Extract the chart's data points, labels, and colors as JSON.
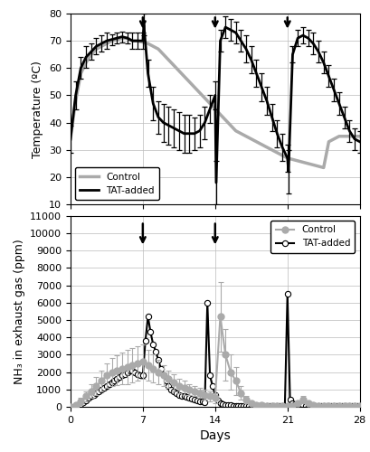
{
  "temp_days_control": [
    0,
    0.5,
    1,
    1.5,
    2,
    2.5,
    3,
    3.5,
    4,
    4.5,
    5,
    5.5,
    6,
    6.5,
    7,
    7.5,
    8,
    8.5,
    9,
    9.5,
    10,
    10.5,
    11,
    11.5,
    12,
    12.5,
    13,
    13.5,
    14,
    14.5,
    15,
    15.5,
    16,
    16.5,
    17,
    17.5,
    18,
    18.5,
    19,
    19.5,
    20,
    20.5,
    21,
    21.5,
    22,
    22.5,
    23,
    23.5,
    24,
    24.5,
    25,
    25.5,
    26,
    26.5,
    27,
    27.5,
    28
  ],
  "temp_control": [
    34,
    48,
    58,
    62,
    65,
    67,
    68,
    69,
    70,
    70.5,
    71,
    71,
    70,
    70,
    69.5,
    69,
    68,
    67,
    65,
    63,
    61,
    59,
    57,
    55,
    53,
    51,
    49,
    47,
    45,
    43,
    41,
    39,
    37,
    36,
    35,
    34,
    33,
    32,
    31,
    30,
    29,
    28,
    27,
    26.5,
    26,
    25.5,
    25,
    24.5,
    24,
    23.5,
    33,
    34,
    35,
    35,
    35,
    35,
    35
  ],
  "temp_days_tat": [
    0,
    0.5,
    1,
    1.5,
    2,
    2.5,
    3,
    3.5,
    4,
    4.5,
    5,
    5.5,
    6,
    6.5,
    7,
    7.1,
    7.5,
    8,
    8.5,
    9,
    9.5,
    10,
    10.5,
    11,
    11.5,
    12,
    12.5,
    13,
    13.5,
    14,
    14.1,
    14.5,
    15,
    15.5,
    16,
    16.5,
    17,
    17.5,
    18,
    18.5,
    19,
    19.5,
    20,
    20.5,
    21,
    21.1,
    21.5,
    22,
    22.5,
    23,
    23.5,
    24,
    24.5,
    25,
    25.5,
    26,
    26.5,
    27,
    27.5,
    28
  ],
  "temp_tat": [
    34,
    50,
    60,
    64,
    66,
    68,
    69,
    70,
    70.5,
    71,
    71.5,
    71,
    70,
    70,
    70,
    76,
    58,
    47,
    42,
    40,
    39,
    38,
    37,
    36,
    36,
    36,
    37,
    40,
    45,
    50,
    18,
    70,
    75,
    74,
    73,
    70,
    67,
    63,
    58,
    53,
    48,
    42,
    36,
    31,
    27,
    22,
    65,
    71,
    72,
    71,
    69,
    66,
    62,
    57,
    52,
    47,
    42,
    37,
    34,
    33
  ],
  "temp_tat_err": [
    5,
    5,
    4,
    4,
    3,
    3,
    3,
    3,
    2,
    2,
    2,
    2,
    3,
    3,
    3,
    4,
    5,
    6,
    6,
    7,
    7,
    7,
    7,
    7,
    7,
    6,
    6,
    6,
    5,
    5,
    8,
    4,
    4,
    4,
    4,
    4,
    5,
    5,
    5,
    5,
    5,
    5,
    5,
    5,
    5,
    8,
    3,
    3,
    3,
    3,
    4,
    4,
    4,
    4,
    4,
    4,
    4,
    4,
    4,
    4
  ],
  "arrow_days_temp": [
    7,
    14,
    21
  ],
  "nh3_days_control": [
    0,
    0.5,
    1,
    1.5,
    2,
    2.5,
    3,
    3.5,
    4,
    4.5,
    5,
    5.5,
    6,
    6.5,
    7,
    7.5,
    8,
    8.5,
    9,
    9.5,
    10,
    10.5,
    11,
    11.5,
    12,
    12.5,
    13,
    13.5,
    14,
    14.5,
    15,
    15.5,
    16,
    16.5,
    17,
    17.5,
    18,
    18.5,
    19,
    19.5,
    20,
    20.5,
    21,
    21.5,
    22,
    22.5,
    23,
    23.5,
    24,
    24.5,
    25,
    25.5,
    26,
    26.5,
    27,
    27.5,
    28
  ],
  "nh3_control": [
    0,
    100,
    300,
    600,
    900,
    1200,
    1500,
    1800,
    2000,
    2100,
    2200,
    2300,
    2400,
    2500,
    2600,
    2400,
    2200,
    2000,
    1800,
    1600,
    1400,
    1200,
    1100,
    1000,
    900,
    800,
    700,
    600,
    500,
    5200,
    3000,
    2000,
    1500,
    800,
    400,
    200,
    100,
    100,
    50,
    50,
    50,
    50,
    50,
    50,
    200,
    400,
    200,
    100,
    50,
    50,
    50,
    50,
    50,
    50,
    50,
    50,
    50
  ],
  "nh3_control_err": [
    0,
    100,
    200,
    300,
    400,
    500,
    600,
    700,
    800,
    850,
    900,
    1000,
    1000,
    1000,
    1000,
    900,
    800,
    700,
    600,
    500,
    500,
    400,
    400,
    300,
    300,
    300,
    300,
    300,
    300,
    2000,
    1500,
    1000,
    800,
    400,
    200,
    100,
    100,
    50,
    50,
    50,
    50,
    50,
    50,
    50,
    100,
    200,
    100,
    50,
    50,
    50,
    50,
    50,
    50,
    50,
    50,
    50,
    50
  ],
  "nh3_days_tat": [
    0,
    0.25,
    0.5,
    0.75,
    1,
    1.25,
    1.5,
    1.75,
    2,
    2.25,
    2.5,
    2.75,
    3,
    3.25,
    3.5,
    3.75,
    4,
    4.25,
    4.5,
    4.75,
    5,
    5.25,
    5.5,
    5.75,
    6,
    6.25,
    6.5,
    6.75,
    7,
    7.25,
    7.5,
    7.75,
    8,
    8.25,
    8.5,
    8.75,
    9,
    9.25,
    9.5,
    9.75,
    10,
    10.25,
    10.5,
    10.75,
    11,
    11.25,
    11.5,
    11.75,
    12,
    12.25,
    12.5,
    12.75,
    13,
    13.25,
    13.5,
    13.75,
    14,
    14.25,
    14.5,
    14.75,
    15,
    15.25,
    15.5,
    15.75,
    16,
    16.25,
    16.5,
    16.75,
    17,
    17.25,
    17.5,
    17.75,
    18,
    18.25,
    18.5,
    18.75,
    19,
    19.25,
    19.5,
    19.75,
    20,
    20.25,
    20.5,
    20.75,
    21,
    21.25,
    21.5,
    21.75,
    22,
    22.25,
    22.5,
    22.75,
    23,
    23.25,
    23.5,
    23.75,
    24,
    24.25,
    24.5,
    24.75,
    25,
    25.25,
    25.5,
    25.75,
    26,
    26.25,
    26.5,
    26.75,
    27,
    27.25,
    27.5,
    27.75,
    28
  ],
  "nh3_tat": [
    0,
    0,
    50,
    100,
    150,
    250,
    350,
    500,
    600,
    700,
    800,
    900,
    1000,
    1100,
    1200,
    1300,
    1400,
    1500,
    1600,
    1700,
    1800,
    1900,
    2000,
    2100,
    2100,
    2000,
    1900,
    1800,
    1800,
    3800,
    5200,
    4300,
    3600,
    3200,
    2700,
    2200,
    1800,
    1500,
    1200,
    1000,
    900,
    800,
    700,
    650,
    600,
    550,
    500,
    450,
    400,
    350,
    300,
    300,
    280,
    6000,
    1800,
    1200,
    700,
    350,
    200,
    150,
    100,
    100,
    80,
    50,
    50,
    50,
    50,
    50,
    50,
    50,
    50,
    50,
    50,
    50,
    50,
    50,
    50,
    50,
    50,
    50,
    50,
    50,
    50,
    50,
    6500,
    400,
    200,
    150,
    100,
    100,
    80,
    60,
    50,
    50,
    50,
    50,
    50,
    50,
    50,
    50,
    50,
    50,
    50,
    50,
    50,
    50,
    50,
    50,
    50,
    50,
    50,
    50,
    50,
    50,
    50
  ],
  "arrow_days_nh3": [
    7,
    14,
    21
  ],
  "color_control": "#aaaaaa",
  "color_tat": "#000000",
  "fig_bg": "#ffffff"
}
